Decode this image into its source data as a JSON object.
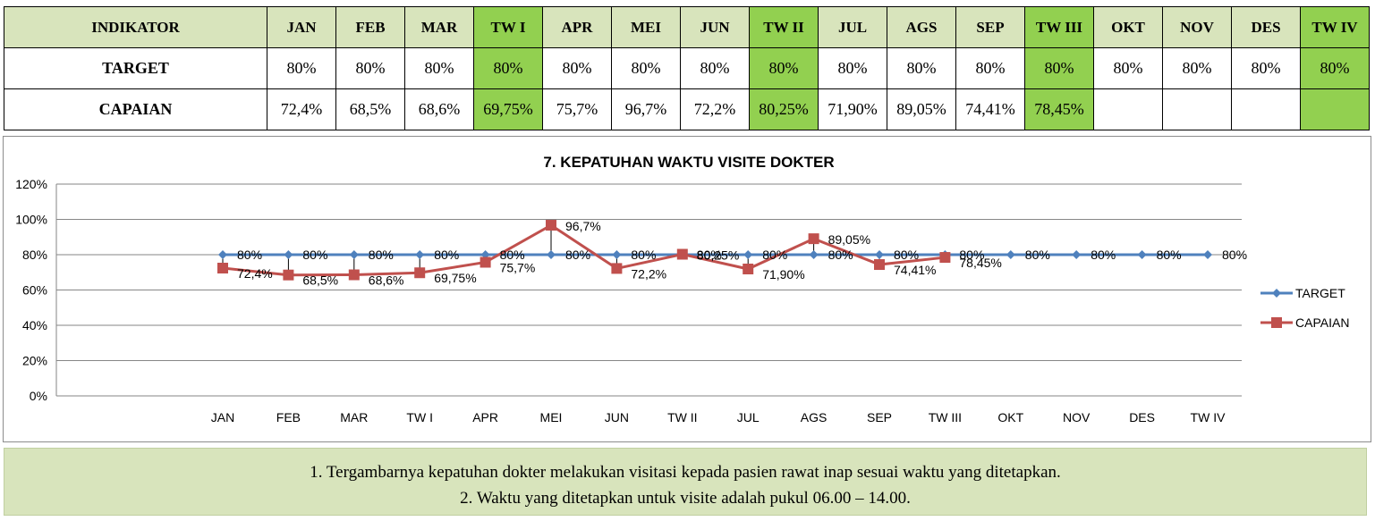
{
  "table": {
    "header": [
      "INDIKATOR",
      "JAN",
      "FEB",
      "MAR",
      "TW I",
      "APR",
      "MEI",
      "JUN",
      "TW II",
      "JUL",
      "AGS",
      "SEP",
      "TW III",
      "OKT",
      "NOV",
      "DES",
      "TW IV"
    ],
    "rows": [
      {
        "label": "TARGET",
        "cells": [
          "80%",
          "80%",
          "80%",
          "80%",
          "80%",
          "80%",
          "80%",
          "80%",
          "80%",
          "80%",
          "80%",
          "80%",
          "80%",
          "80%",
          "80%",
          "80%"
        ]
      },
      {
        "label": "CAPAIAN",
        "cells": [
          "72,4%",
          "68,5%",
          "68,6%",
          "69,75%",
          "75,7%",
          "96,7%",
          "72,2%",
          "80,25%",
          "71,90%",
          "89,05%",
          "74,41%",
          "78,45%",
          "",
          "",
          "",
          ""
        ]
      }
    ],
    "colors": {
      "header_bg": "#d8e4bc",
      "quarter_bg": "#92d050"
    }
  },
  "chart_data": {
    "type": "line",
    "title": "7. KEPATUHAN WAKTU VISITE DOKTER",
    "categories": [
      "JAN",
      "FEB",
      "MAR",
      "TW I",
      "APR",
      "MEI",
      "JUN",
      "TW II",
      "JUL",
      "AGS",
      "SEP",
      "TW III",
      "OKT",
      "NOV",
      "DES",
      "TW IV"
    ],
    "series": [
      {
        "name": "TARGET",
        "color": "#4f81bd",
        "marker": "diamond",
        "values": [
          80,
          80,
          80,
          80,
          80,
          80,
          80,
          80,
          80,
          80,
          80,
          80,
          80,
          80,
          80,
          80
        ],
        "labels": [
          "80%",
          "80%",
          "80%",
          "80%",
          "80%",
          "80%",
          "80%",
          "80%",
          "80%",
          "80%",
          "80%",
          "80%",
          "80%",
          "80%",
          "80%",
          "80%"
        ]
      },
      {
        "name": "CAPAIAN",
        "color": "#c0504d",
        "marker": "square",
        "values": [
          72.4,
          68.5,
          68.6,
          69.75,
          75.7,
          96.7,
          72.2,
          80.25,
          71.9,
          89.05,
          74.41,
          78.45,
          null,
          null,
          null,
          null
        ],
        "labels": [
          "72,4%",
          "68,5%",
          "68,6%",
          "69,75%",
          "75,7%",
          "96,7%",
          "72,2%",
          "80,25%",
          "71,90%",
          "89,05%",
          "74,41%",
          "78,45%",
          "",
          "",
          "",
          ""
        ]
      }
    ],
    "ylim": [
      0,
      120
    ],
    "yticks": [
      0,
      20,
      40,
      60,
      80,
      100,
      120
    ],
    "ytick_labels": [
      "0%",
      "20%",
      "40%",
      "60%",
      "80%",
      "100%",
      "120%"
    ],
    "grid": true,
    "legend": "right"
  },
  "notes": [
    "1. Tergambarnya kepatuhan dokter melakukan visitasi kepada pasien rawat inap sesuai waktu yang ditetapkan.",
    "2. Waktu yang ditetapkan untuk visite adalah pukul 06.00 – 14.00."
  ]
}
